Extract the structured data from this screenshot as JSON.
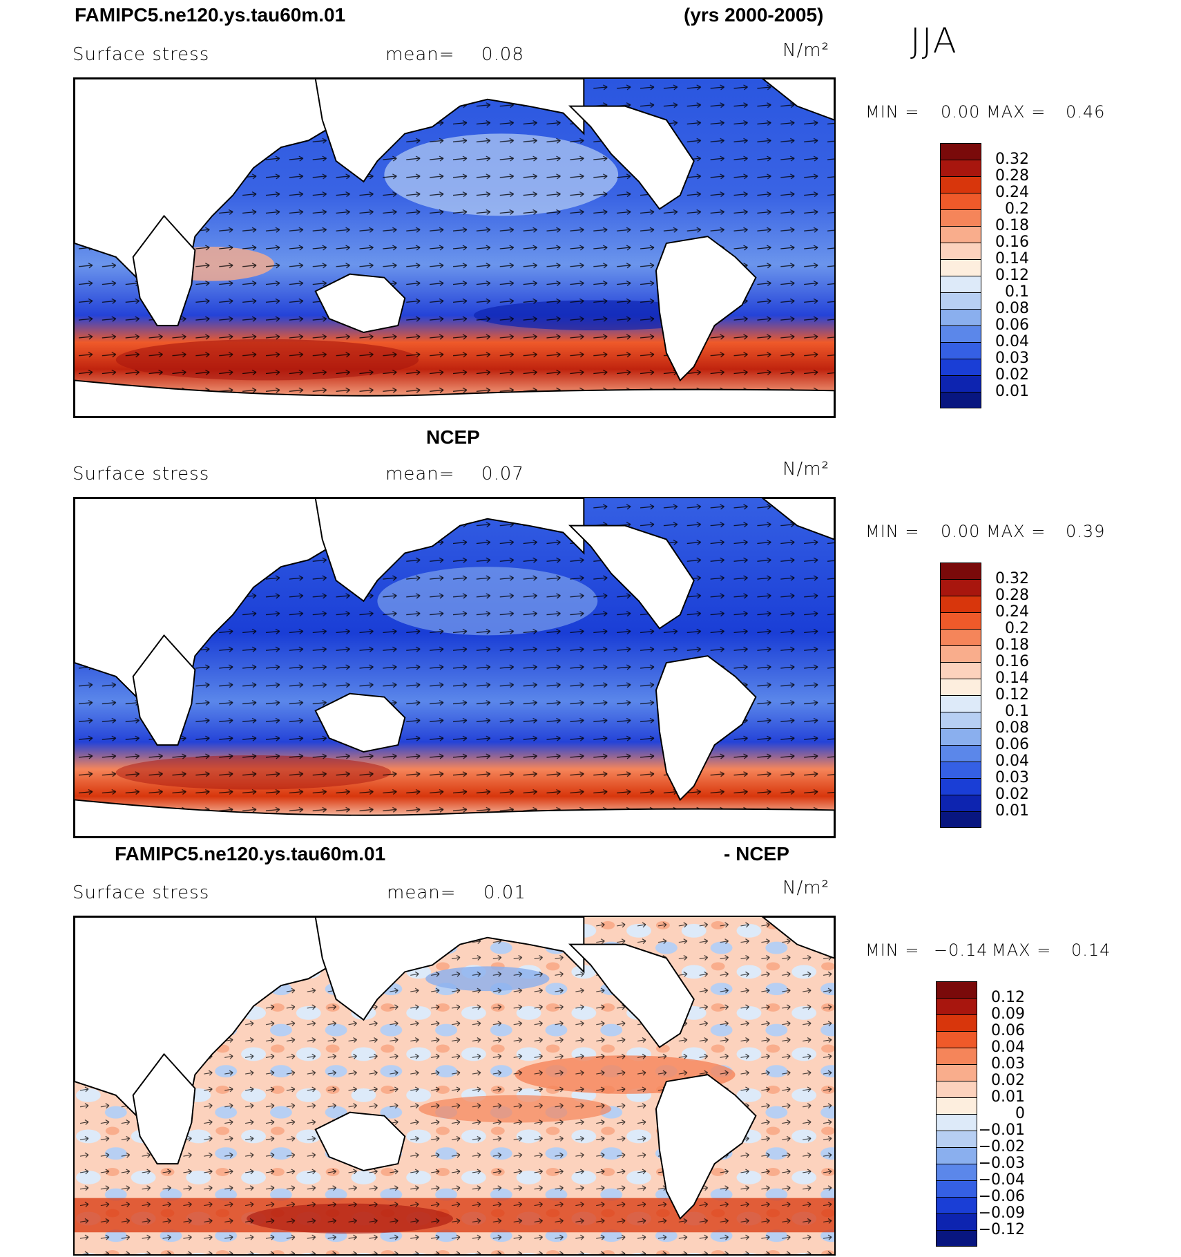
{
  "header": {
    "case_name": "FAMIPC5.ne120.ys.tau60m.01",
    "years": "(yrs 2000-2005)",
    "season": "JJA"
  },
  "panels": [
    {
      "title": "",
      "variable": "Surface stress",
      "mean_label": "mean=",
      "mean_value": "0.08",
      "units": "N/m²",
      "min_label": "MIN =",
      "min_value": "0.00",
      "max_label": "MAX =",
      "max_value": "0.46",
      "colorbar_labels": [
        "0.32",
        "0.28",
        "0.24",
        "0.2",
        "0.18",
        "0.16",
        "0.14",
        "0.12",
        "0.1",
        "0.08",
        "0.06",
        "0.04",
        "0.03",
        "0.02",
        "0.01"
      ]
    },
    {
      "title": "NCEP",
      "variable": "Surface stress",
      "mean_label": "mean=",
      "mean_value": "0.07",
      "units": "N/m²",
      "min_label": "MIN =",
      "min_value": "0.00",
      "max_label": "MAX =",
      "max_value": "0.39",
      "colorbar_labels": [
        "0.32",
        "0.28",
        "0.24",
        "0.2",
        "0.18",
        "0.16",
        "0.14",
        "0.12",
        "0.1",
        "0.08",
        "0.06",
        "0.04",
        "0.03",
        "0.02",
        "0.01"
      ]
    },
    {
      "title_left": "FAMIPC5.ne120.ys.tau60m.01",
      "title_right": "- NCEP",
      "variable": "Surface stress",
      "mean_label": "mean=",
      "mean_value": "0.01",
      "units": "N/m²",
      "min_label": "MIN =",
      "min_value": "−0.14",
      "max_label": "MAX =",
      "max_value": "0.14",
      "colorbar_labels": [
        "0.12",
        "0.09",
        "0.06",
        "0.04",
        "0.03",
        "0.02",
        "0.01",
        "0",
        "−0.01",
        "−0.02",
        "−0.03",
        "−0.04",
        "−0.06",
        "−0.09",
        "−0.12"
      ]
    }
  ],
  "colors": {
    "abs_scale": [
      "#7a0a0a",
      "#a8160e",
      "#d8360c",
      "#ef5a2a",
      "#f5855a",
      "#f9ad8c",
      "#fcd2bd",
      "#fdeede",
      "#ddeaf9",
      "#b7cff3",
      "#8aafee",
      "#5b87ea",
      "#3560e4",
      "#1a3ed6",
      "#0d24b0",
      "#081680"
    ],
    "diff_scale": [
      "#7a0a0a",
      "#a8160e",
      "#d8360c",
      "#ef5a2a",
      "#f5855a",
      "#f9ad8c",
      "#fcd2bd",
      "#fdeede",
      "#ddeaf9",
      "#b7cff3",
      "#8aafee",
      "#5b87ea",
      "#3560e4",
      "#1a3ed6",
      "#0d24b0",
      "#081680"
    ]
  }
}
